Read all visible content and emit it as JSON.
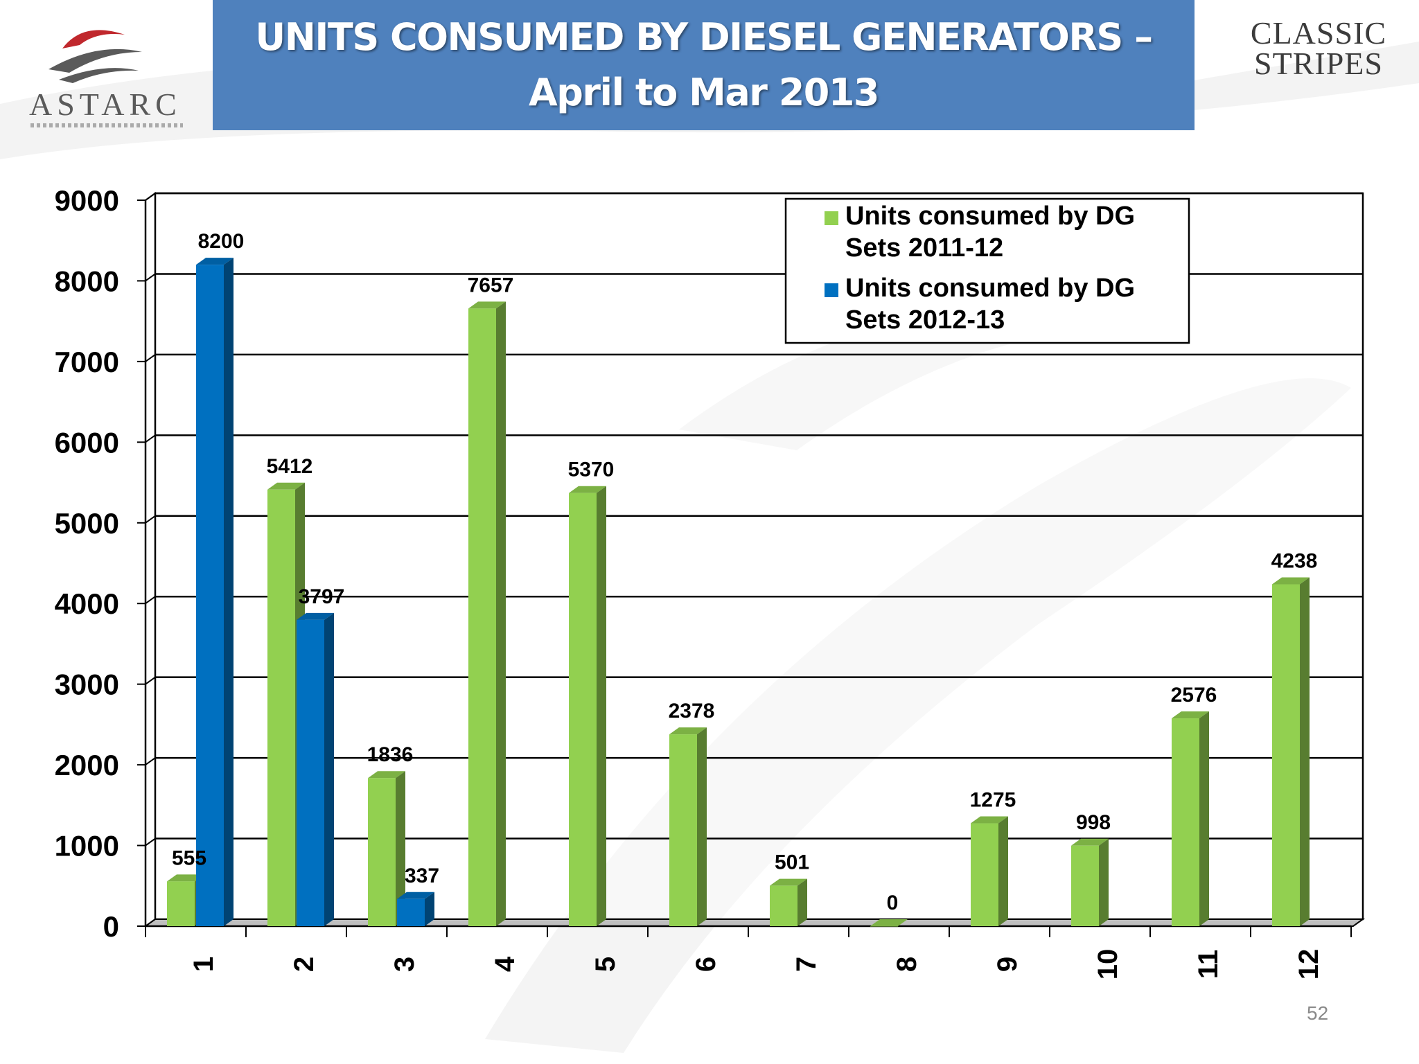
{
  "title": {
    "line1": "UNITS CONSUMED BY DIESEL GENERATORS –",
    "line2": "April to  Mar 2013"
  },
  "logos": {
    "left": "ASTARC",
    "right_line1": "CLASSIC",
    "right_line2": "STRIPES"
  },
  "page_number": "52",
  "colors": {
    "banner": "#4f81bd",
    "series_2011_12": "#92d050",
    "series_2012_13": "#0070c0"
  },
  "chart_data": {
    "type": "bar",
    "style": "3d-clustered-column",
    "categories": [
      "1",
      "2",
      "3",
      "4",
      "5",
      "6",
      "7",
      "8",
      "9",
      "10",
      "11",
      "12"
    ],
    "series": [
      {
        "name": "Units consumed by DG Sets 2011-12",
        "legend_lines": [
          "Units consumed by DG",
          "Sets 2011-12"
        ],
        "color": "#92d050",
        "values": [
          555,
          5412,
          1836,
          7657,
          5370,
          2378,
          501,
          0,
          1275,
          998,
          2576,
          4238
        ]
      },
      {
        "name": "Units consumed by DG Sets 2012-13",
        "legend_lines": [
          "Units consumed by DG",
          "Sets 2012-13"
        ],
        "color": "#0070c0",
        "values": [
          8200,
          3797,
          337,
          null,
          null,
          null,
          null,
          null,
          null,
          null,
          null,
          null
        ]
      }
    ],
    "yticks": [
      "0",
      "1000",
      "2000",
      "3000",
      "4000",
      "5000",
      "6000",
      "7000",
      "8000",
      "9000"
    ],
    "ylim": [
      0,
      9000
    ],
    "grid": true,
    "legend_position": "top-right",
    "title": "",
    "xlabel": "",
    "ylabel": ""
  }
}
